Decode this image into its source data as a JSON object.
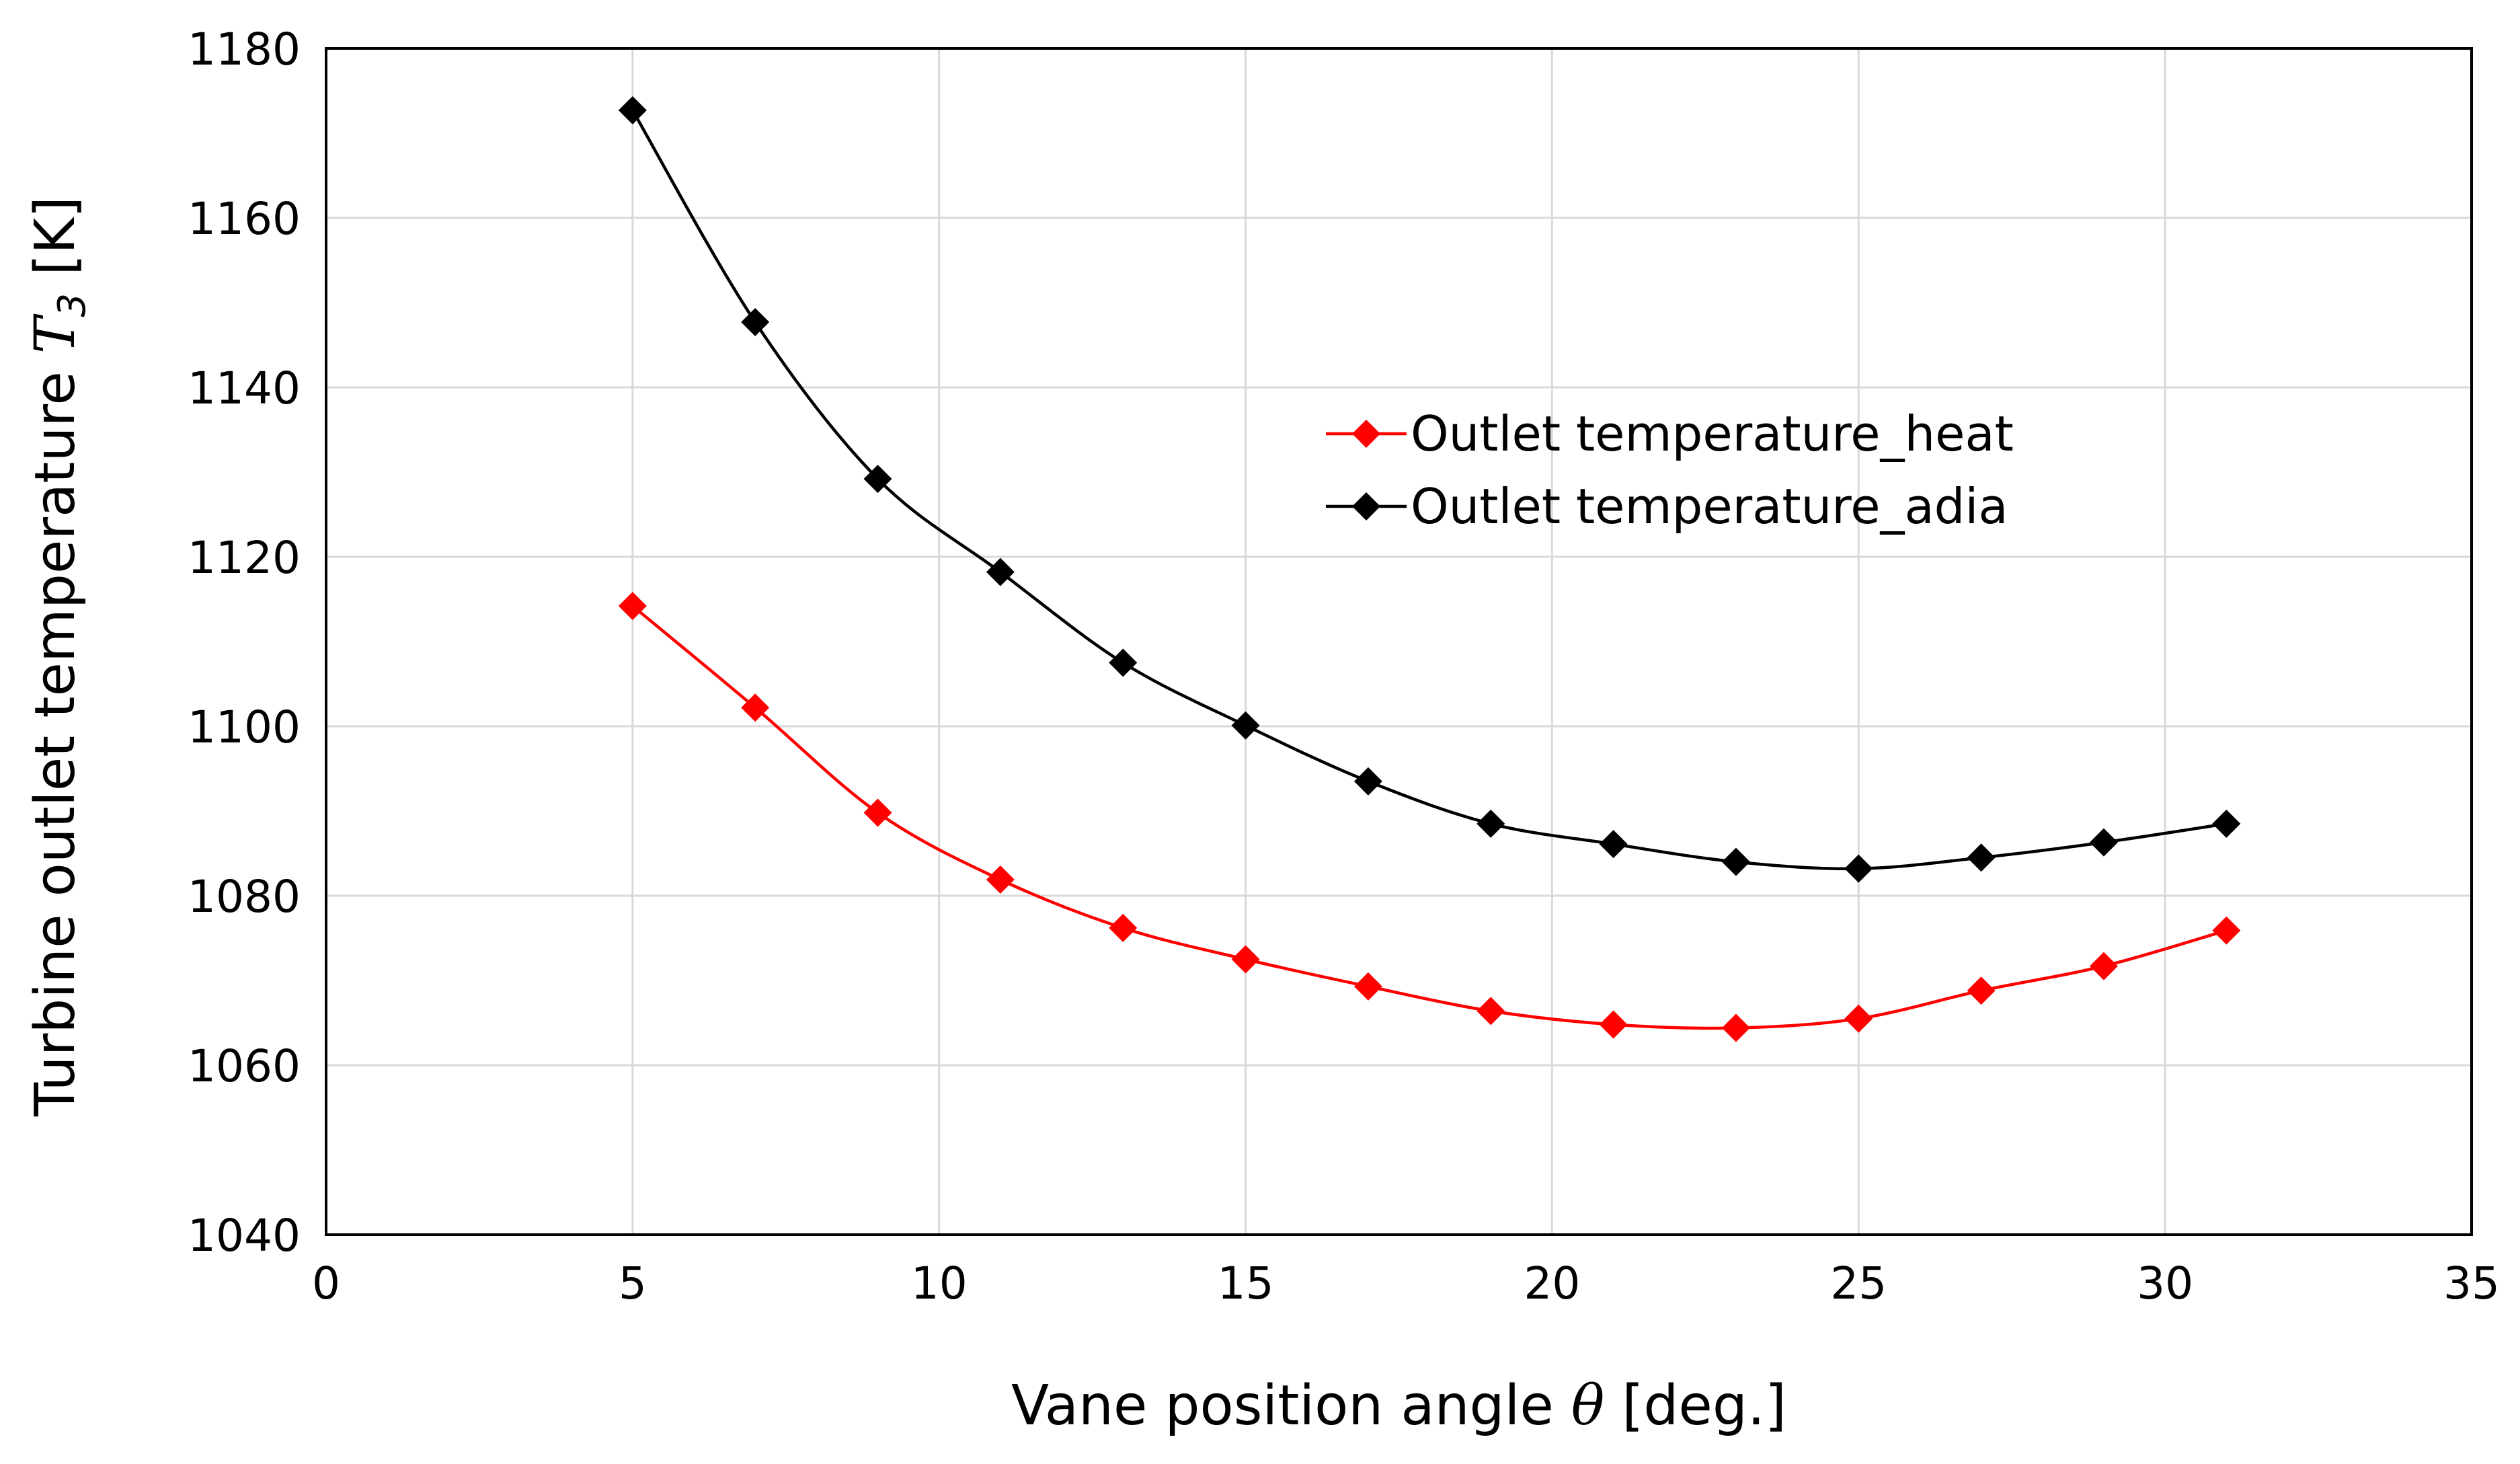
{
  "chart_data": {
    "type": "line",
    "title": "",
    "xlabel": {
      "prefix": "Vane position angle ",
      "symbol": "θ",
      "suffix": " [deg.]"
    },
    "ylabel": {
      "prefix": "Turbine outlet temperature  ",
      "symbol": "T",
      "subscript": "3",
      "suffix": " [K]"
    },
    "xlim": [
      0,
      35
    ],
    "ylim": [
      1040,
      1180
    ],
    "xticks": [
      0,
      5,
      10,
      15,
      20,
      25,
      30,
      35
    ],
    "yticks": [
      1040,
      1060,
      1080,
      1100,
      1120,
      1140,
      1160,
      1180
    ],
    "grid": true,
    "legend_position": "upper-center-right",
    "x": [
      5,
      7,
      9,
      11,
      13,
      15,
      17,
      19,
      21,
      23,
      25,
      27,
      29,
      31
    ],
    "series": [
      {
        "name": "Outlet temperature_heat",
        "color": "#ff0000",
        "marker": "diamond",
        "values": [
          1114.2,
          1102.2,
          1089.8,
          1081.9,
          1076.2,
          1072.5,
          1069.3,
          1066.4,
          1064.8,
          1064.4,
          1065.5,
          1068.8,
          1071.7,
          1075.9
        ]
      },
      {
        "name": "Outlet temperature_adia",
        "color": "#000000",
        "marker": "diamond",
        "values": [
          1172.7,
          1147.7,
          1129.2,
          1118.2,
          1107.5,
          1100.1,
          1093.5,
          1088.5,
          1086.1,
          1084.0,
          1083.2,
          1084.5,
          1086.3,
          1088.5
        ]
      }
    ]
  }
}
